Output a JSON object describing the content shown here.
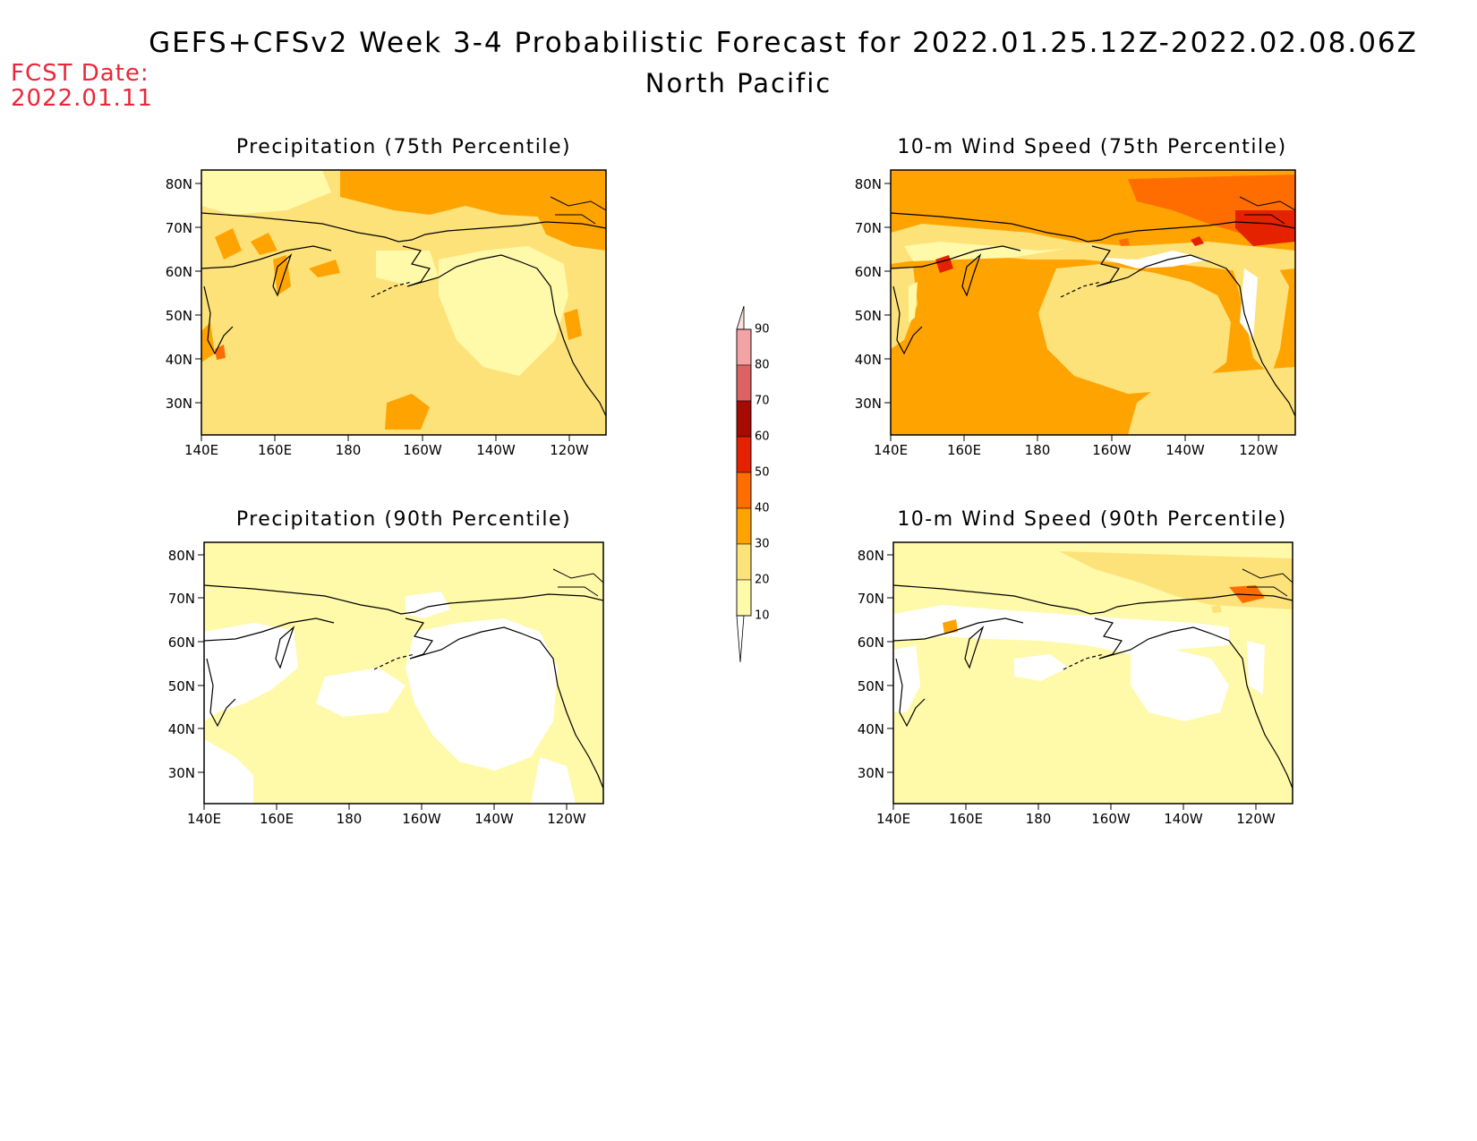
{
  "header": {
    "title": "GEFS+CFSv2 Week 3-4 Probabilistic Forecast for 2022.01.25.12Z-2022.02.08.06Z",
    "region": "North Pacific",
    "fcst_label": "FCST Date:",
    "fcst_date": "2022.01.11"
  },
  "axes": {
    "x_ticks": [
      "140E",
      "160E",
      "180",
      "160W",
      "140W",
      "120W"
    ],
    "y_ticks": [
      "80N",
      "70N",
      "60N",
      "50N",
      "40N",
      "30N"
    ],
    "lon_range": [
      140,
      250
    ],
    "lat_range": [
      25,
      85
    ]
  },
  "panels": [
    {
      "title": "Precipitation (75th Percentile)",
      "variable": "precipitation",
      "percentile": 75,
      "dominant_category": "20-30",
      "max_category": "40-50"
    },
    {
      "title": "10-m Wind Speed (75th Percentile)",
      "variable": "wind_speed",
      "percentile": 75,
      "dominant_category": "30-40",
      "max_category": "50-60"
    },
    {
      "title": "Precipitation (90th Percentile)",
      "variable": "precipitation",
      "percentile": 90,
      "dominant_category": "10-20",
      "max_category": "10-20"
    },
    {
      "title": "10-m Wind Speed (90th Percentile)",
      "variable": "wind_speed",
      "percentile": 90,
      "dominant_category": "10-20",
      "max_category": "40-50"
    }
  ],
  "colorbar": {
    "levels": [
      "10",
      "20",
      "30",
      "40",
      "50",
      "60",
      "70",
      "80",
      "90"
    ],
    "colors": [
      "#fff9aa",
      "#fde27a",
      "#ffa301",
      "#ff6d00",
      "#e42200",
      "#a50b00",
      "#dd6363",
      "#f3a3a3",
      "#ffdede"
    ],
    "below_color": "#ffffff"
  }
}
